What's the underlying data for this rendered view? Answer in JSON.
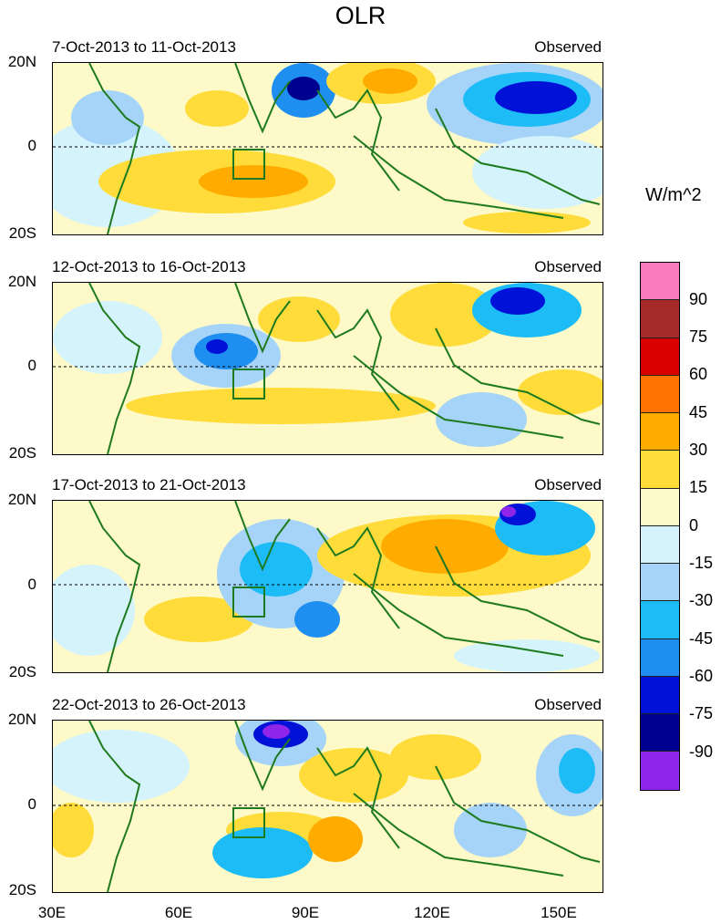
{
  "title": "OLR",
  "units": "W/m^2",
  "panels": [
    {
      "period": "7-Oct-2013 to 11-Oct-2013",
      "label": "Observed"
    },
    {
      "period": "12-Oct-2013 to 16-Oct-2013",
      "label": "Observed"
    },
    {
      "period": "17-Oct-2013 to 21-Oct-2013",
      "label": "Observed"
    },
    {
      "period": "22-Oct-2013 to 26-Oct-2013",
      "label": "Observed"
    }
  ],
  "lat_labels": [
    "20N",
    "0",
    "20S"
  ],
  "lon_labels": [
    "30E",
    "60E",
    "90E",
    "120E",
    "150E"
  ],
  "colorbar": {
    "labels": [
      "90",
      "75",
      "60",
      "45",
      "30",
      "15",
      "0",
      "-15",
      "-30",
      "-45",
      "-60",
      "-75",
      "-90"
    ],
    "colors": [
      "#f97bbf",
      "#a52a2a",
      "#d90000",
      "#ff7300",
      "#ffab00",
      "#ffdc3a",
      "#fdf9c8",
      "#d4f3fb",
      "#a6d4f8",
      "#1ebcf7",
      "#1e8ff0",
      "#0012d8",
      "#00008e",
      "#8f25e8"
    ]
  }
}
